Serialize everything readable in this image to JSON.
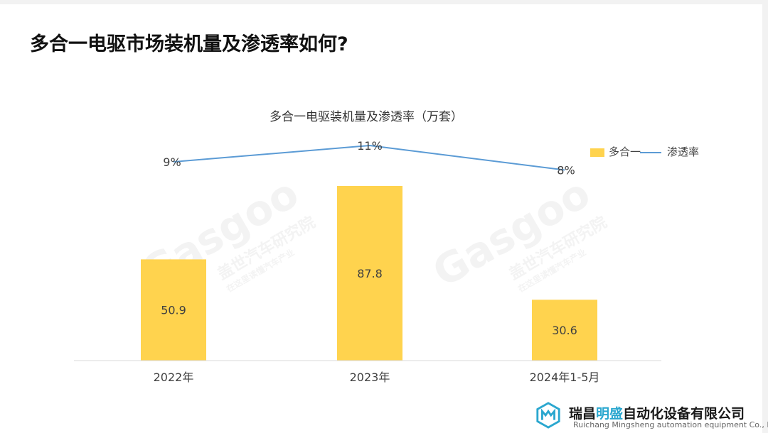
{
  "page": {
    "heading": "多合一电驱市场装机量及渗透率如何?"
  },
  "chart_data": {
    "type": "bar",
    "title": "多合一电驱装机量及渗透率（万套）",
    "categories": [
      "2022年",
      "2023年",
      "2024年1-5月"
    ],
    "series": [
      {
        "name": "多合一",
        "type": "bar",
        "color": "#FFD34E",
        "values": [
          50.9,
          87.8,
          30.6
        ],
        "labels": [
          "50.9",
          "87.8",
          "30.6"
        ]
      },
      {
        "name": "渗透率",
        "type": "line",
        "color": "#5B9BD5",
        "values": [
          9,
          11,
          8
        ],
        "labels": [
          "9%",
          "11%",
          "8%"
        ]
      }
    ],
    "legend_position": "top-right",
    "grid": false
  },
  "watermark": {
    "brand": "Gasgoo",
    "cn": "盖世汽车研究院",
    "tagline": "在这里读懂汽车产业"
  },
  "footer": {
    "company_prefix": "瑞昌",
    "company_highlight": "明盛",
    "company_suffix": "自动化设备有限公司",
    "company_en": "Ruichang Mingsheng automation equipment Co., Ltd"
  }
}
